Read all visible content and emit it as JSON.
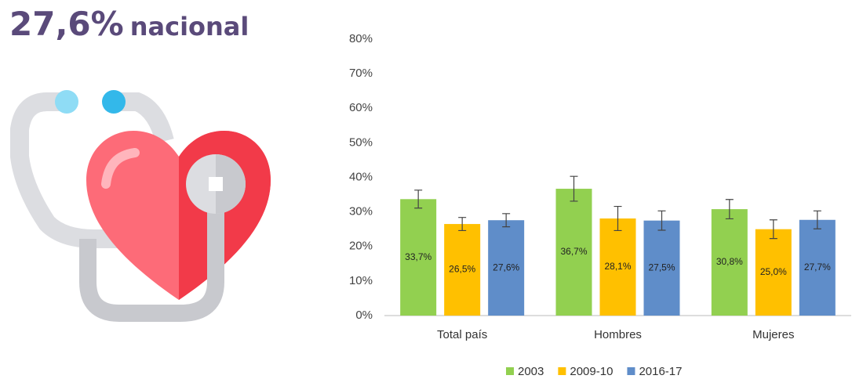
{
  "headline": {
    "value": "27,6%",
    "text": "nacional"
  },
  "chart_data": {
    "type": "bar",
    "categories": [
      "Total país",
      "Hombres",
      "Mujeres"
    ],
    "series": [
      {
        "name": "2003",
        "color": "#92d050",
        "values": [
          33.7,
          36.7,
          30.8
        ],
        "value_labels": [
          "33,7%",
          "36,7%",
          "30,8%"
        ],
        "errors": [
          2.6,
          3.6,
          2.8
        ]
      },
      {
        "name": "2009-10",
        "color": "#ffc000",
        "values": [
          26.5,
          28.1,
          25.0
        ],
        "value_labels": [
          "26,5%",
          "28,1%",
          "25,0%"
        ],
        "errors": [
          1.9,
          3.5,
          2.7
        ]
      },
      {
        "name": "2016-17",
        "color": "#5f8dc9",
        "values": [
          27.6,
          27.5,
          27.7
        ],
        "value_labels": [
          "27,6%",
          "27,5%",
          "27,7%"
        ],
        "errors": [
          1.9,
          2.8,
          2.6
        ]
      }
    ],
    "ylim": [
      0,
      80
    ],
    "yticks": [
      {
        "value": 0,
        "label": "0%"
      },
      {
        "value": 10,
        "label": "10%"
      },
      {
        "value": 20,
        "label": "20%"
      },
      {
        "value": 30,
        "label": "30%"
      },
      {
        "value": 40,
        "label": "40%"
      },
      {
        "value": 50,
        "label": "50%"
      },
      {
        "value": 60,
        "label": "60%"
      },
      {
        "value": 70,
        "label": "70%"
      },
      {
        "value": 80,
        "label": "80%"
      }
    ],
    "grid": false,
    "error_bars": true,
    "legend": "bottom"
  }
}
